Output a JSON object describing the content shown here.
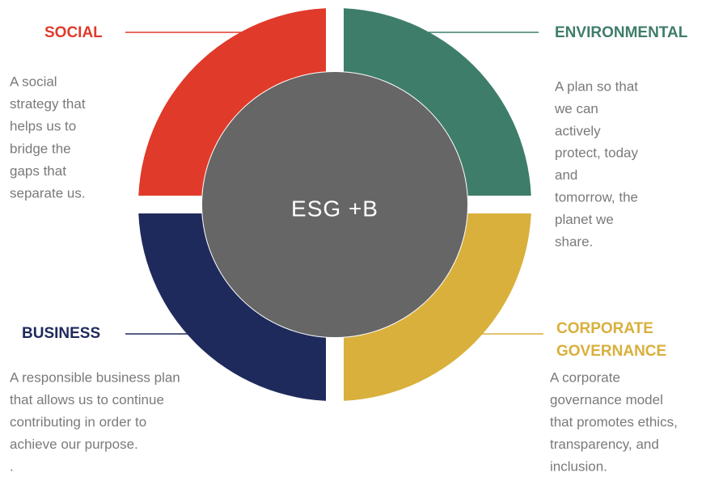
{
  "diagram": {
    "center": "ESG +B",
    "sections": [
      {
        "title": [
          "SOCIAL"
        ],
        "description": [
          "A social",
          "strategy that",
          "helps us to",
          "bridge the",
          "gaps that",
          "separate us."
        ]
      },
      {
        "title": [
          "ENVIRONMENTAL"
        ],
        "description": [
          "A plan so that",
          "we can",
          "actively",
          "protect, today",
          "and",
          "tomorrow, the",
          "planet we",
          "share."
        ]
      },
      {
        "title": [
          "BUSINESS"
        ],
        "description": [
          "A responsible business plan",
          "that allows us to continue",
          "contributing in order to",
          "achieve our purpose.",
          "."
        ]
      },
      {
        "title": [
          "CORPORATE",
          "GOVERNANCE"
        ],
        "description": [
          "A corporate",
          "governance model",
          "that promotes ethics,",
          "transparency, and",
          "inclusion."
        ]
      }
    ]
  }
}
